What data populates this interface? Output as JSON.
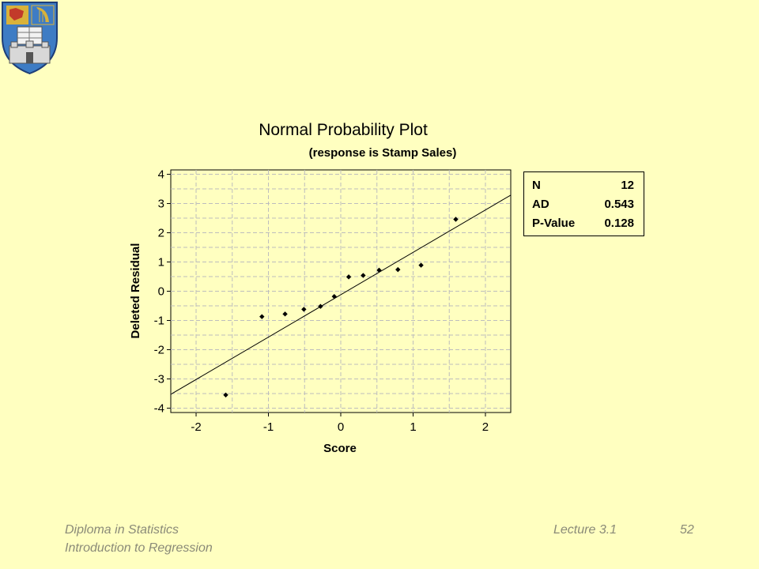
{
  "slide": {
    "footer_left_line1": "Diploma in Statistics",
    "footer_left_line2": "Introduction to Regression",
    "footer_lecture": "Lecture 3.1",
    "footer_page": "52"
  },
  "colors": {
    "background": "#FFFFC0",
    "plot_background": "#FFFFC0",
    "footer_text": "#8A8A78",
    "crest_blue": "#3E7CC4",
    "crest_gold": "#D9B23A"
  },
  "stats_box": {
    "rows": [
      {
        "label": "N",
        "value": "12"
      },
      {
        "label": "AD",
        "value": "0.543"
      },
      {
        "label": "P-Value",
        "value": "0.128"
      }
    ]
  },
  "chart_data": {
    "type": "scatter",
    "title": "Normal Probability Plot",
    "subtitle": "(response is Stamp Sales)",
    "xlabel": "Score",
    "ylabel": "Deleted Residual",
    "xlim": [
      -2.35,
      2.35
    ],
    "ylim": [
      -4.15,
      4.15
    ],
    "xticks": [
      -2,
      -1,
      0,
      1,
      2
    ],
    "yticks": [
      -4,
      -3,
      -2,
      -1,
      0,
      1,
      2,
      3,
      4
    ],
    "grid": true,
    "points": [
      {
        "x": -1.59,
        "y": -3.55
      },
      {
        "x": -1.09,
        "y": -0.87
      },
      {
        "x": -0.77,
        "y": -0.78
      },
      {
        "x": -0.51,
        "y": -0.62
      },
      {
        "x": -0.28,
        "y": -0.52
      },
      {
        "x": -0.09,
        "y": -0.18
      },
      {
        "x": 0.11,
        "y": 0.49
      },
      {
        "x": 0.31,
        "y": 0.54
      },
      {
        "x": 0.53,
        "y": 0.72
      },
      {
        "x": 0.79,
        "y": 0.74
      },
      {
        "x": 1.11,
        "y": 0.89
      },
      {
        "x": 1.59,
        "y": 2.46
      }
    ],
    "fit_line": {
      "intercept": -0.12,
      "slope": 1.45
    }
  }
}
